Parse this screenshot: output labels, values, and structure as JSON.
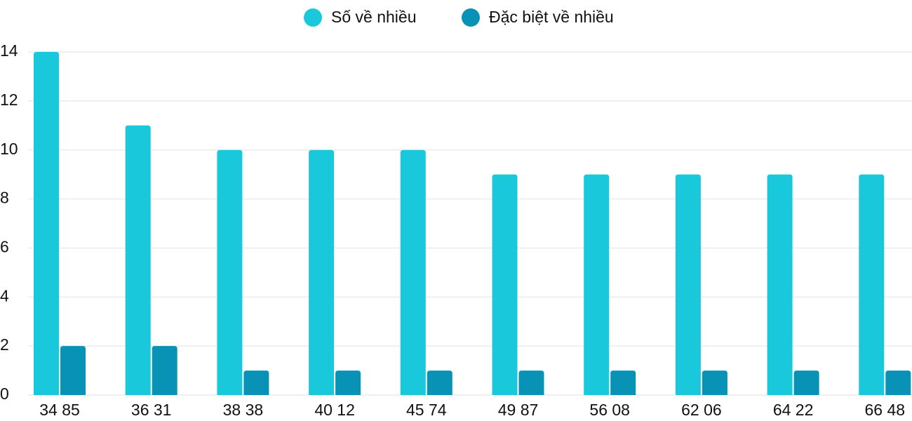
{
  "chart_data": {
    "type": "bar",
    "categories": [
      "34 85",
      "36 31",
      "38 38",
      "40 12",
      "45 74",
      "49 87",
      "56 08",
      "62 06",
      "64 22",
      "66 48"
    ],
    "series": [
      {
        "name": "Số về nhiều",
        "color": "#1ac8dc",
        "values": [
          14,
          11,
          10,
          10,
          10,
          9,
          9,
          9,
          9,
          9
        ]
      },
      {
        "name": "Đặc biệt về nhiều",
        "color": "#0892b6",
        "values": [
          2,
          2,
          1,
          1,
          1,
          1,
          1,
          1,
          1,
          1
        ]
      }
    ],
    "ylim": [
      0,
      14
    ],
    "yticks": [
      0,
      2,
      4,
      6,
      8,
      10,
      12,
      14
    ],
    "grid": true,
    "legend": "top"
  }
}
